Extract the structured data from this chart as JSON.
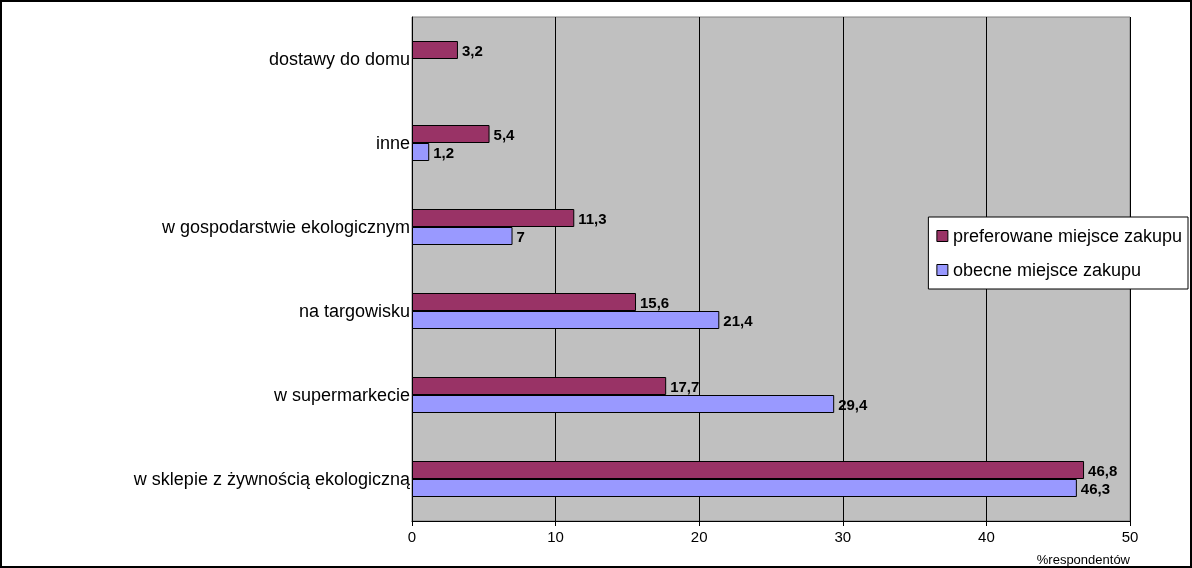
{
  "chart_data": {
    "type": "bar",
    "orientation": "horizontal",
    "xlabel": "%respondentów",
    "categories": [
      "dostawy do domu",
      "inne",
      "w gospodarstwie ekologicznym",
      "na targowisku",
      "w supermarkecie",
      "w sklepie z żywnością ekologiczną"
    ],
    "series": [
      {
        "name": "preferowane miejsce zakupu",
        "color": "#993366",
        "values": [
          3.2,
          5.4,
          11.3,
          15.6,
          17.7,
          46.8
        ],
        "value_labels": [
          "3,2",
          "5,4",
          "11,3",
          "15,6",
          "17,7",
          "46,8"
        ]
      },
      {
        "name": "obecne miejsce zakupu",
        "color": "#9999ff",
        "values": [
          null,
          1.2,
          7,
          21.4,
          29.4,
          46.3
        ],
        "value_labels": [
          null,
          "1,2",
          "7",
          "21,4",
          "29,4",
          "46,3"
        ]
      }
    ],
    "xlim": [
      0,
      50
    ],
    "xticks": [
      0,
      10,
      20,
      30,
      40,
      50
    ],
    "grid": "x",
    "legend": "right"
  }
}
